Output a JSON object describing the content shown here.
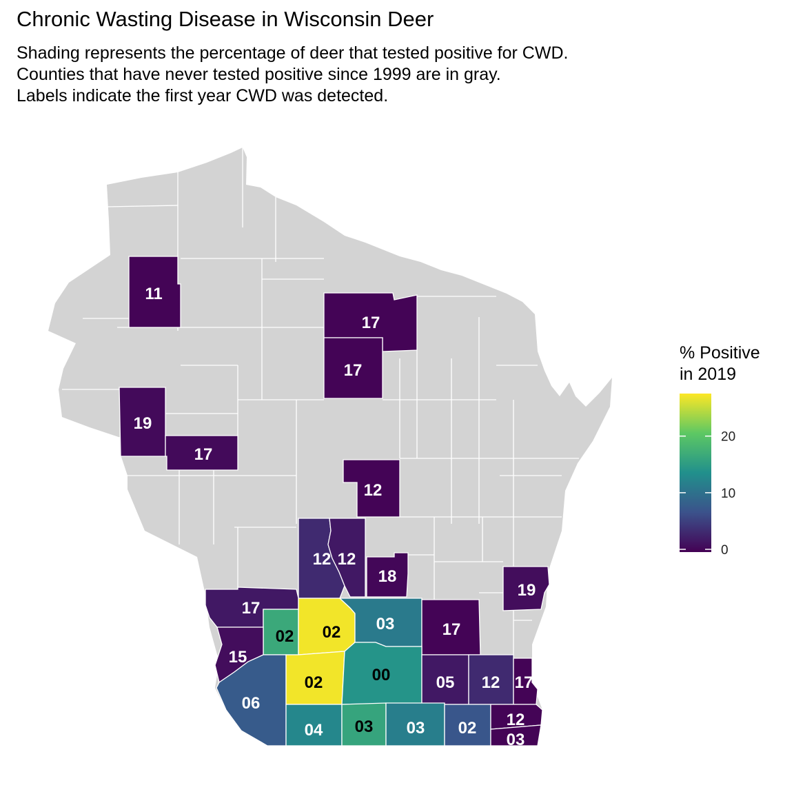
{
  "title": "Chronic Wasting Disease in Wisconsin Deer",
  "subtitle": [
    "Shading represents the percentage of deer that tested positive for CWD.",
    "Counties that have never tested positive since 1999 are in gray.",
    "Labels indicate the first year CWD was detected."
  ],
  "legend": {
    "title": [
      "% Positive",
      "in 2019"
    ],
    "ticks": [
      "0",
      "10",
      "20"
    ],
    "range": [
      0,
      28
    ]
  },
  "colors": {
    "never_positive": "#d3d3d3",
    "scale": [
      "#440154",
      "#3b528b",
      "#21908c",
      "#5dc863",
      "#fde725"
    ]
  },
  "counties": [
    {
      "label": "11",
      "pct": 0.3
    },
    {
      "label": "17",
      "pct": 0.3
    },
    {
      "label": "17",
      "pct": 0.3
    },
    {
      "label": "19",
      "pct": 0.8
    },
    {
      "label": "17",
      "pct": 0.8
    },
    {
      "label": "12",
      "pct": 0.3
    },
    {
      "label": "12",
      "pct": 3.5
    },
    {
      "label": "12",
      "pct": 2.0
    },
    {
      "label": "18",
      "pct": 0.5
    },
    {
      "label": "19",
      "pct": 1.0
    },
    {
      "label": "17",
      "pct": 2.0
    },
    {
      "label": "02",
      "pct": 17.0
    },
    {
      "label": "02",
      "pct": 27.5
    },
    {
      "label": "03",
      "pct": 11.5
    },
    {
      "label": "17",
      "pct": 0.3
    },
    {
      "label": "15",
      "pct": 1.0
    },
    {
      "label": "06",
      "pct": 8.0
    },
    {
      "label": "02",
      "pct": 27.5
    },
    {
      "label": "00",
      "pct": 14.5
    },
    {
      "label": "05",
      "pct": 2.0
    },
    {
      "label": "12",
      "pct": 3.5
    },
    {
      "label": "17",
      "pct": 0.3
    },
    {
      "label": "04",
      "pct": 13.0
    },
    {
      "label": "03",
      "pct": 16.5
    },
    {
      "label": "03",
      "pct": 12.0
    },
    {
      "label": "02",
      "pct": 7.5
    },
    {
      "label": "12",
      "pct": 0.3
    },
    {
      "label": "03",
      "pct": 0.3
    }
  ]
}
